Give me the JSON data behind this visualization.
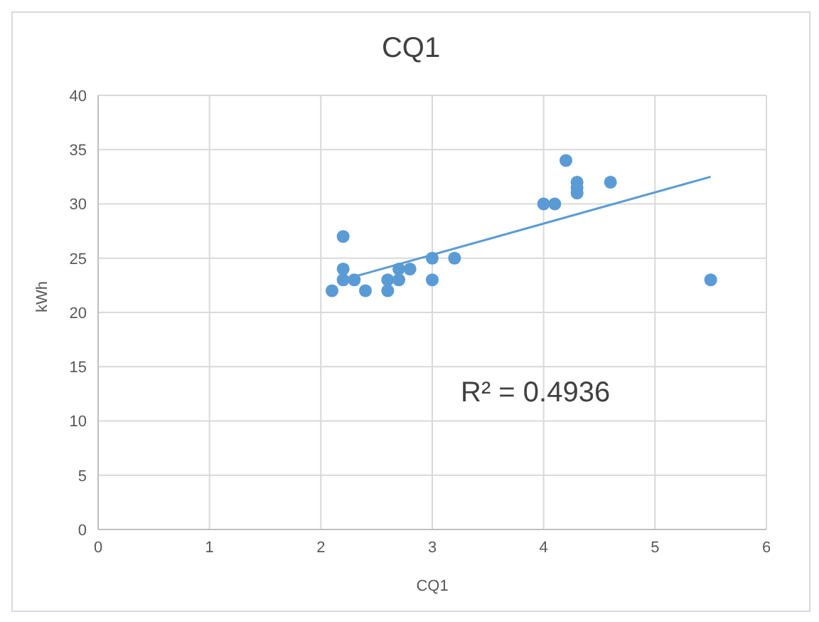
{
  "chart_data": {
    "type": "scatter",
    "title": "CQ1",
    "xlabel": "CQ1",
    "ylabel": "kWh",
    "xlim": [
      0,
      6
    ],
    "xticks": [
      0,
      1,
      2,
      3,
      4,
      5,
      6
    ],
    "ylim": [
      0,
      40
    ],
    "yticks": [
      0,
      5,
      10,
      15,
      20,
      25,
      30,
      35,
      40
    ],
    "grid": true,
    "marker": "circle",
    "series": [
      {
        "color": "#5b9bd5",
        "x": [
          2.1,
          2.2,
          2.2,
          2.2,
          2.3,
          2.4,
          2.6,
          2.6,
          2.7,
          2.7,
          2.8,
          3.0,
          3.0,
          3.2,
          4.0,
          4.1,
          4.2,
          4.3,
          4.3,
          4.3,
          4.6,
          5.5
        ],
        "values": [
          22,
          27,
          24,
          23,
          23,
          22,
          22,
          23,
          23,
          24,
          24,
          25,
          23,
          25,
          30,
          30,
          34,
          32,
          31.5,
          31,
          32,
          23
        ]
      },
      {
        "type": "line",
        "color": "#5b9bd5",
        "line_style": "solid",
        "marker": "none",
        "x": [
          2.3,
          5.5
        ],
        "values": [
          23.3,
          32.5
        ]
      }
    ],
    "annotations": [
      "R² = 0.4936"
    ]
  }
}
